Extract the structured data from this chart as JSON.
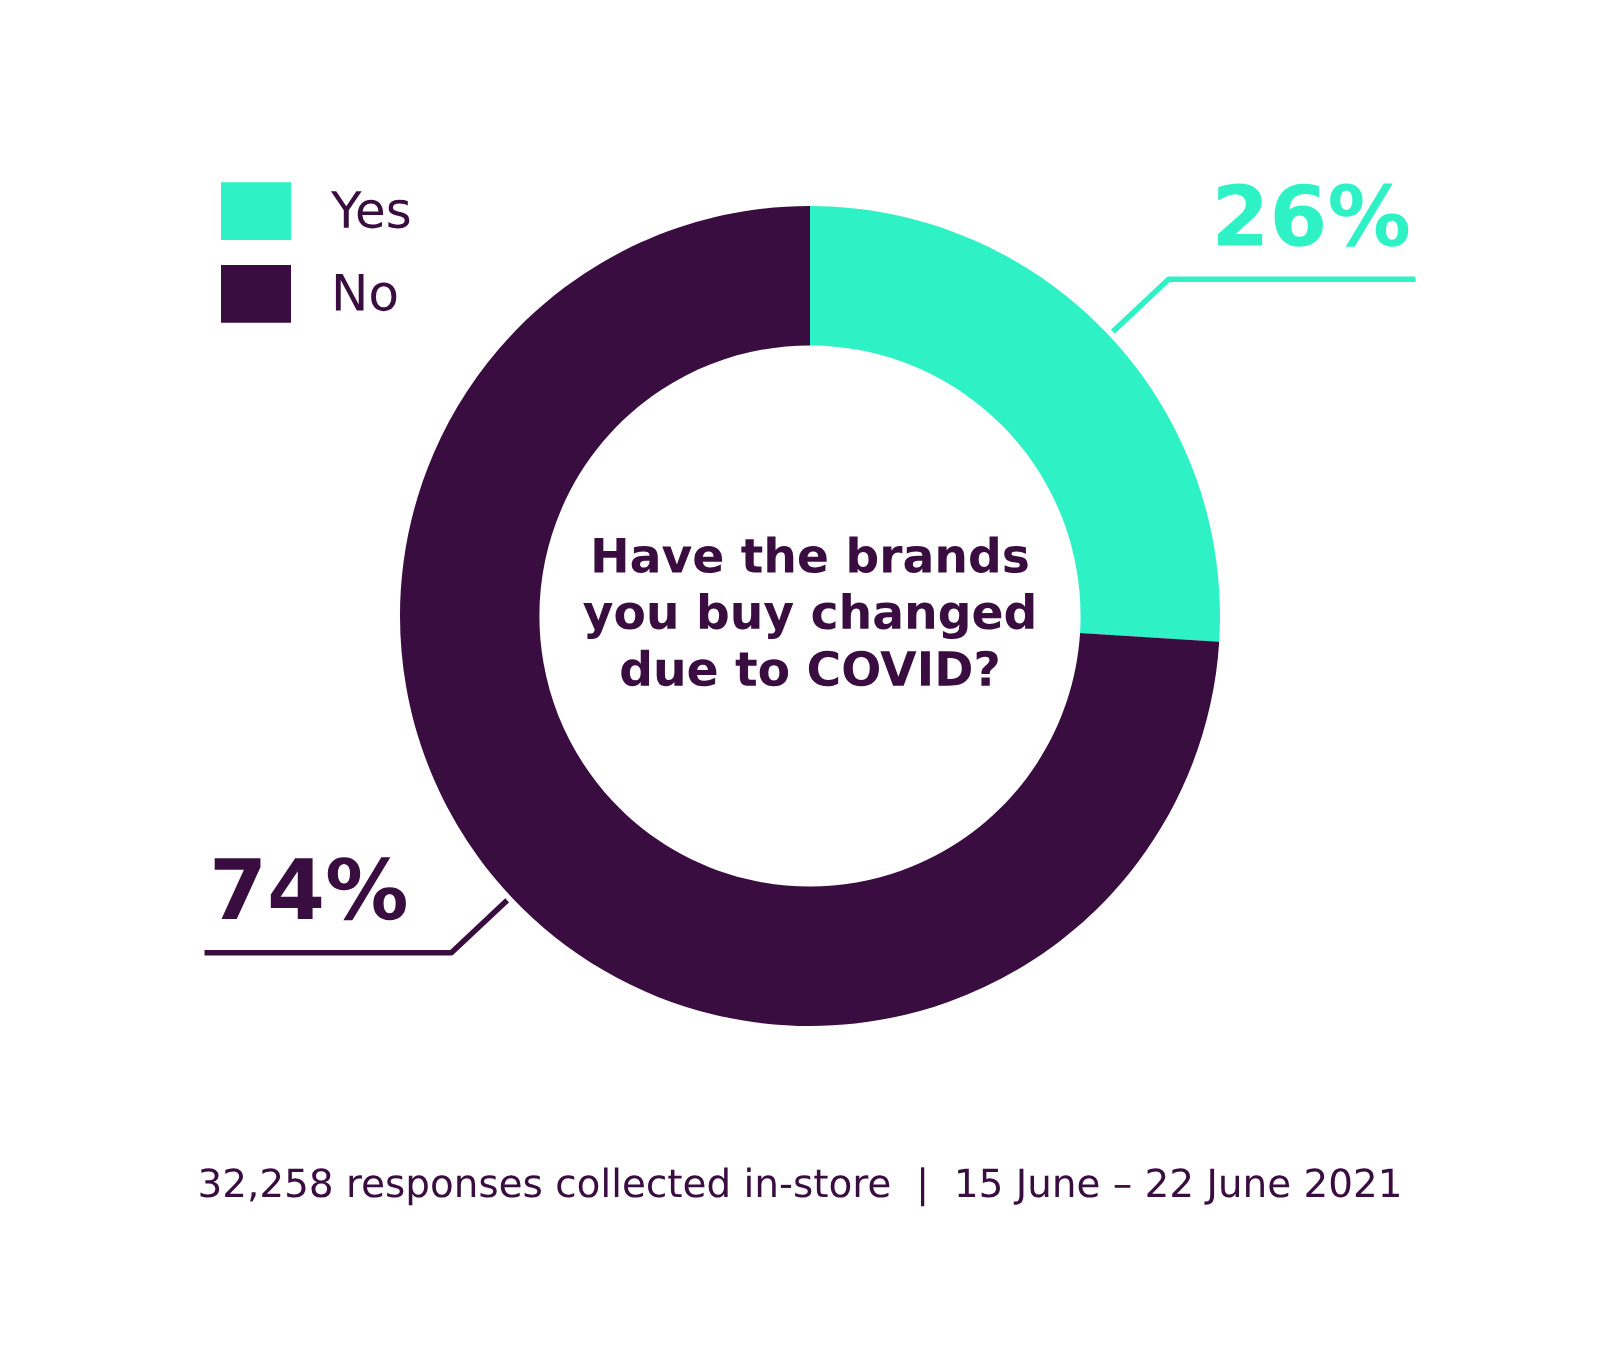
{
  "chart_data": {
    "type": "donut",
    "title": "Have the brands\nyou buy changed\ndue to COVID?",
    "categories": [
      "Yes",
      "No"
    ],
    "values": [
      26,
      74
    ],
    "colors": [
      "#2ef2c6",
      "#3a0d40"
    ],
    "value_labels": [
      "26%",
      "74%"
    ],
    "legend": "top left",
    "annotations": [
      "32,258 responses collected in-store  |  15 June – 22 June 2021"
    ]
  }
}
